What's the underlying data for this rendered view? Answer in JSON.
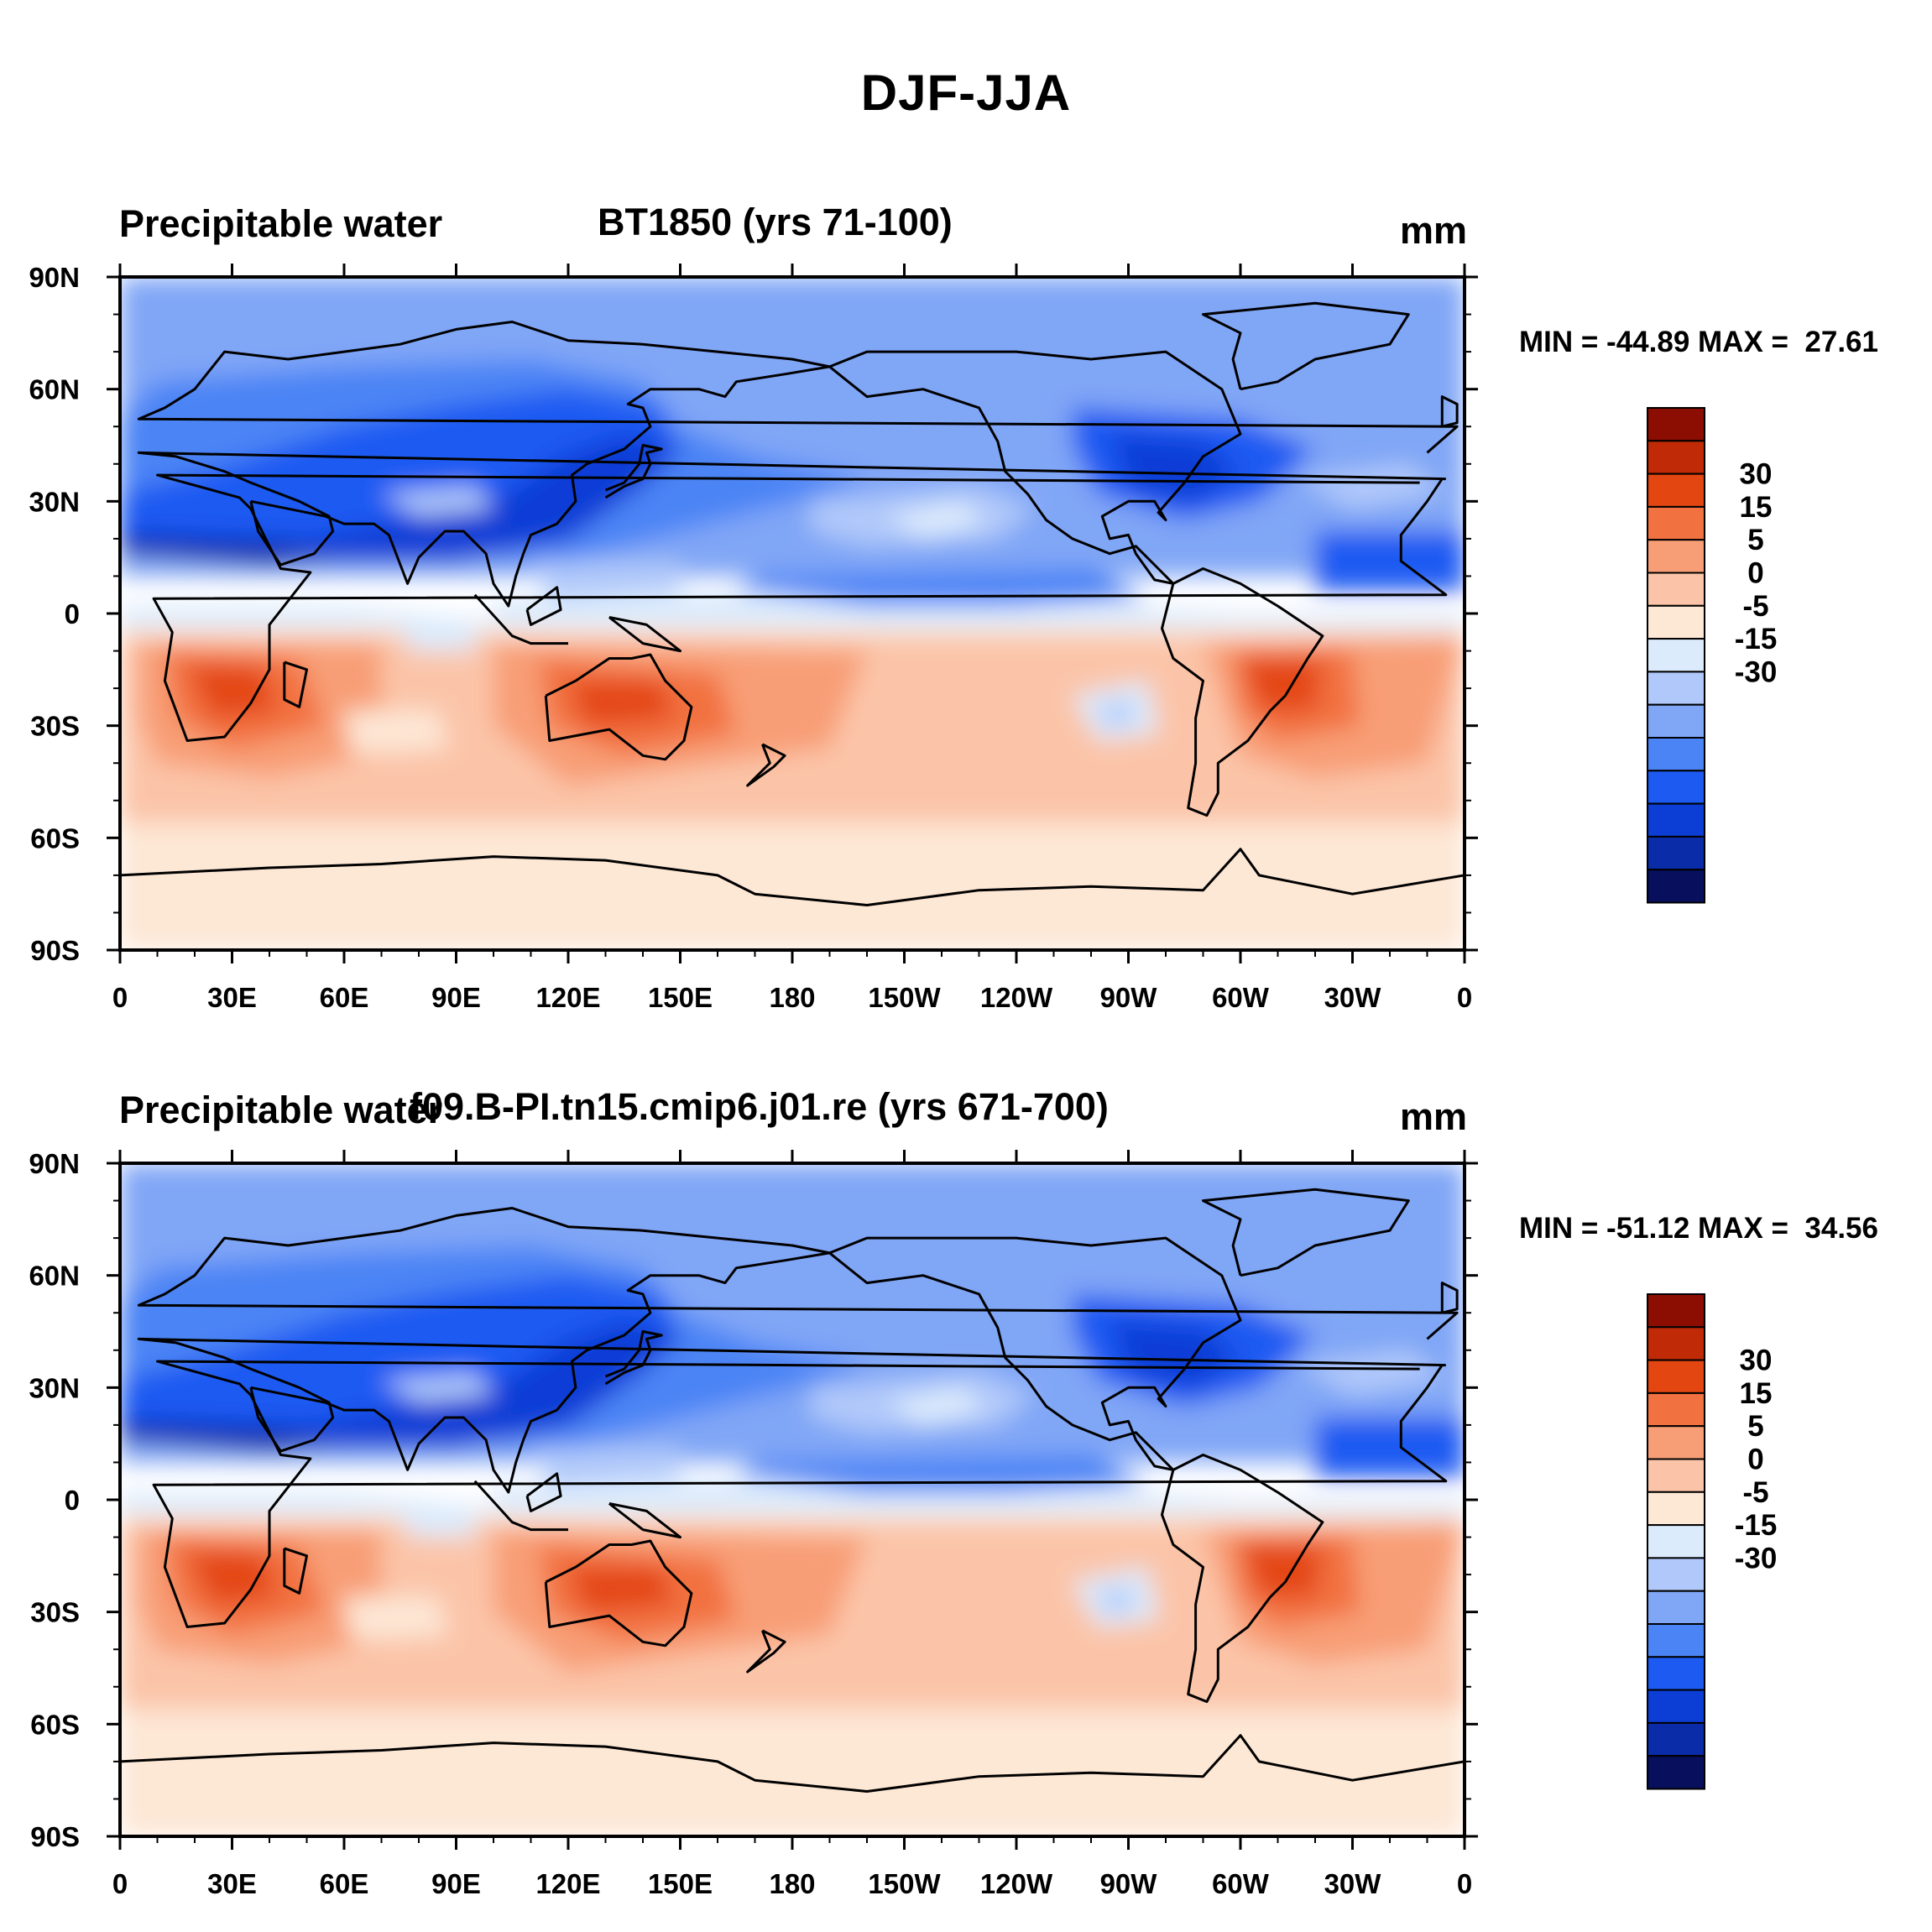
{
  "title": "DJF-JJA",
  "colors": {
    "scale": [
      "#08105e",
      "#0a2ca8",
      "#0c3ed6",
      "#1d5af2",
      "#4b84f5",
      "#80a6f6",
      "#b1c9fa",
      "#dcebfc",
      "#fde7d5",
      "#fbc4a8",
      "#f89e76",
      "#f27140",
      "#e44612",
      "#c02a06",
      "#8c0d02"
    ]
  },
  "colorbar": {
    "labels": [
      "30",
      "15",
      "5",
      "0",
      "-5",
      "-15",
      "-30"
    ]
  },
  "panels": [
    {
      "left_title": "Precipitable water",
      "center_title": "BT1850 (yrs 71-100)",
      "units": "mm",
      "stats": "MIN = -44.89 MAX =  27.61"
    },
    {
      "left_title": "Precipitable water",
      "center_title": "f09.B-PI.tn15.cmip6.j01.re (yrs 671-700)",
      "units": "mm",
      "stats": "MIN = -51.12 MAX =  34.56"
    }
  ],
  "axes": {
    "lat_labels": [
      "90N",
      "60N",
      "30N",
      "0",
      "30S",
      "60S",
      "90S"
    ],
    "lon_labels": [
      "0",
      "30E",
      "60E",
      "90E",
      "120E",
      "150E",
      "180",
      "150W",
      "120W",
      "90W",
      "60W",
      "30W",
      "0"
    ]
  }
}
